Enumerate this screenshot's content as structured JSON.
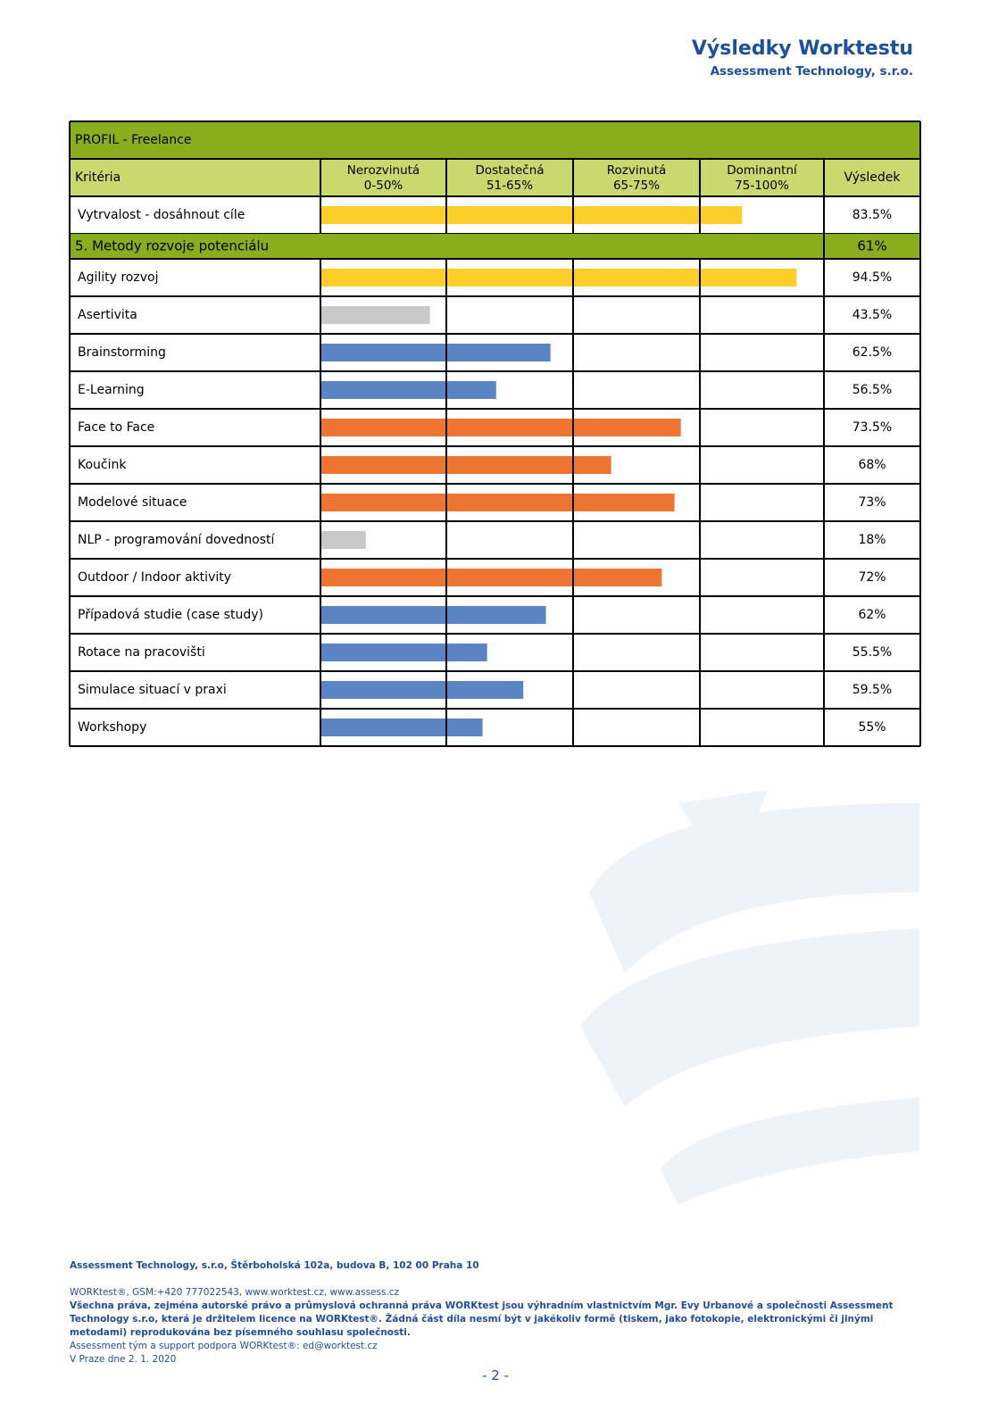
{
  "header": {
    "title": "Výsledky Worktestu",
    "company": "Assessment Technology, s.r.o."
  },
  "table": {
    "profile": "PROFIL - Freelance",
    "criteria_label": "Kritéria",
    "result_label": "Výsledek",
    "bands": [
      {
        "name": "Nerozvinutá",
        "label": "0-50%",
        "from": 0,
        "to": 50
      },
      {
        "name": "Dostatečná",
        "label": "51-65%",
        "from": 51,
        "to": 65
      },
      {
        "name": "Rozvinutá",
        "label": "65-75%",
        "from": 65,
        "to": 75
      },
      {
        "name": "Dominantní",
        "label": "75-100%",
        "from": 75,
        "to": 100
      }
    ],
    "top_rows": [
      {
        "name": "Vytrvalost - dosáhnout cíle",
        "value": 83.5,
        "value_label": "83.5%",
        "color": "#fdcd2a"
      }
    ],
    "section": {
      "name": "5. Metody rozvoje potenciálu",
      "value": 61,
      "value_label": "61%",
      "rows": [
        {
          "name": "Agility rozvoj",
          "value": 94.5,
          "value_label": "94.5%",
          "color": "#fdcd2a"
        },
        {
          "name": "Asertivita",
          "value": 43.5,
          "value_label": "43.5%",
          "color": "#c9c9c9"
        },
        {
          "name": "Brainstorming",
          "value": 62.5,
          "value_label": "62.5%",
          "color": "#5b84c4"
        },
        {
          "name": "E-Learning",
          "value": 56.5,
          "value_label": "56.5%",
          "color": "#5b84c4"
        },
        {
          "name": "Face to Face",
          "value": 73.5,
          "value_label": "73.5%",
          "color": "#ee7432"
        },
        {
          "name": "Koučink",
          "value": 68,
          "value_label": "68%",
          "color": "#ee7432"
        },
        {
          "name": "Modelové situace",
          "value": 73,
          "value_label": "73%",
          "color": "#ee7432"
        },
        {
          "name": "NLP - programování dovedností",
          "value": 18,
          "value_label": "18%",
          "color": "#c9c9c9"
        },
        {
          "name": "Outdoor / Indoor aktivity",
          "value": 72,
          "value_label": "72%",
          "color": "#ee7432"
        },
        {
          "name": "Případová studie (case study)",
          "value": 62,
          "value_label": "62%",
          "color": "#5b84c4"
        },
        {
          "name": "Rotace na pracovišti",
          "value": 55.5,
          "value_label": "55.5%",
          "color": "#5b84c4"
        },
        {
          "name": "Simulace situací v praxi",
          "value": 59.5,
          "value_label": "59.5%",
          "color": "#5b84c4"
        },
        {
          "name": "Workshopy",
          "value": 55,
          "value_label": "55%",
          "color": "#5b84c4"
        }
      ]
    }
  },
  "footer": {
    "address": "Assessment Technology, s.r.o, Štěrboholská 102a, budova B, 102 00 Praha 10",
    "contact": "WORKtest®, GSM:+420 777022543, www.worktest.cz, www.assess.cz",
    "rights": "Všechna práva, zejména autorské právo a průmyslová ochranná práva WORKtest jsou výhradním vlastnictvím Mgr. Evy Urbanové a společnosti Assessment Technology s.r.o, která je držitelem licence na WORKtest®. Žádná část díla nesmí být v jakékoliv formě (tiskem, jako fotokopie, elektronickými či jinými metodami) reprodukována bez písemného souhlasu společnosti.",
    "support": "Assessment tým a support podpora WORKtest®: ed@worktest.cz",
    "date": "V Praze dne 2. 1. 2020",
    "page": "- 2 -"
  }
}
